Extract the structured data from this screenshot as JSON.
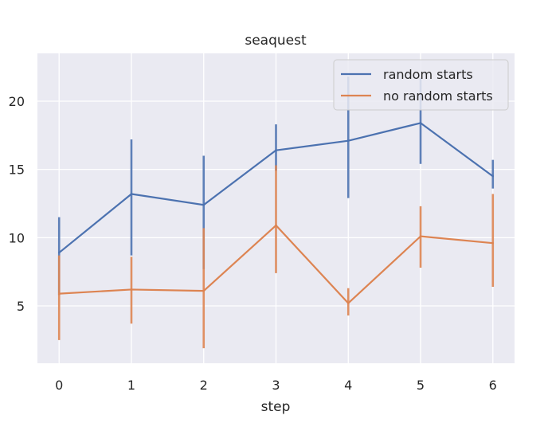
{
  "chart_data": {
    "type": "line",
    "title": "seaquest",
    "xlabel": "step",
    "ylabel": "",
    "x": [
      0,
      1,
      2,
      3,
      4,
      5,
      6
    ],
    "xticks": [
      0,
      1,
      2,
      3,
      4,
      5,
      6
    ],
    "yticks": [
      5,
      10,
      15,
      20
    ],
    "xlim": [
      -0.3,
      6.3
    ],
    "ylim": [
      0.8,
      23.5
    ],
    "grid": true,
    "legend_position": "top-right",
    "series": [
      {
        "name": "random starts",
        "color": "#4c72b0",
        "values": [
          8.9,
          13.2,
          12.4,
          16.4,
          17.1,
          18.4,
          14.5
        ],
        "err_low": [
          5.8,
          8.7,
          7.7,
          14.9,
          12.9,
          15.4,
          13.6
        ],
        "err_high": [
          11.5,
          17.2,
          16.0,
          18.3,
          21.8,
          21.7,
          15.7
        ]
      },
      {
        "name": "no random starts",
        "color": "#dd8452",
        "values": [
          5.9,
          6.2,
          6.1,
          10.9,
          5.2,
          10.1,
          9.6
        ],
        "err_low": [
          2.5,
          3.7,
          1.9,
          7.4,
          4.3,
          7.8,
          6.4
        ],
        "err_high": [
          8.7,
          8.6,
          10.7,
          15.3,
          6.3,
          12.3,
          13.2
        ]
      }
    ]
  }
}
